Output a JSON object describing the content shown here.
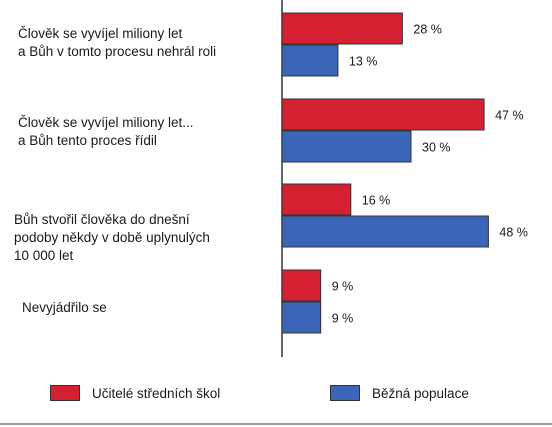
{
  "chart_data": {
    "type": "bar",
    "orientation": "horizontal",
    "categories": [
      [
        "Člověk se vyvíjel miliony let",
        "a Bůh v tomto procesu nehrál roli"
      ],
      [
        "Člověk se vyvíjel miliony let...",
        "a Bůh tento proces řídil"
      ],
      [
        "Bůh stvořil člověka do dnešní",
        "podoby někdy v době uplynulých",
        "10 000 let"
      ],
      [
        "Nevyjádřilo se"
      ]
    ],
    "series": [
      {
        "name": "Učitelé středních škol",
        "color": "#d42030",
        "values": [
          28,
          47,
          16,
          9
        ],
        "labels": [
          "28 %",
          "47 %",
          "16 %",
          "9 %"
        ]
      },
      {
        "name": "Běžná populace",
        "color": "#3b66b8",
        "values": [
          13,
          30,
          48,
          9
        ],
        "labels": [
          "13 %",
          "30 %",
          "48 %",
          "9 %"
        ]
      }
    ],
    "xlim": [
      0,
      55
    ],
    "grid": false,
    "legend_position": "bottom"
  }
}
